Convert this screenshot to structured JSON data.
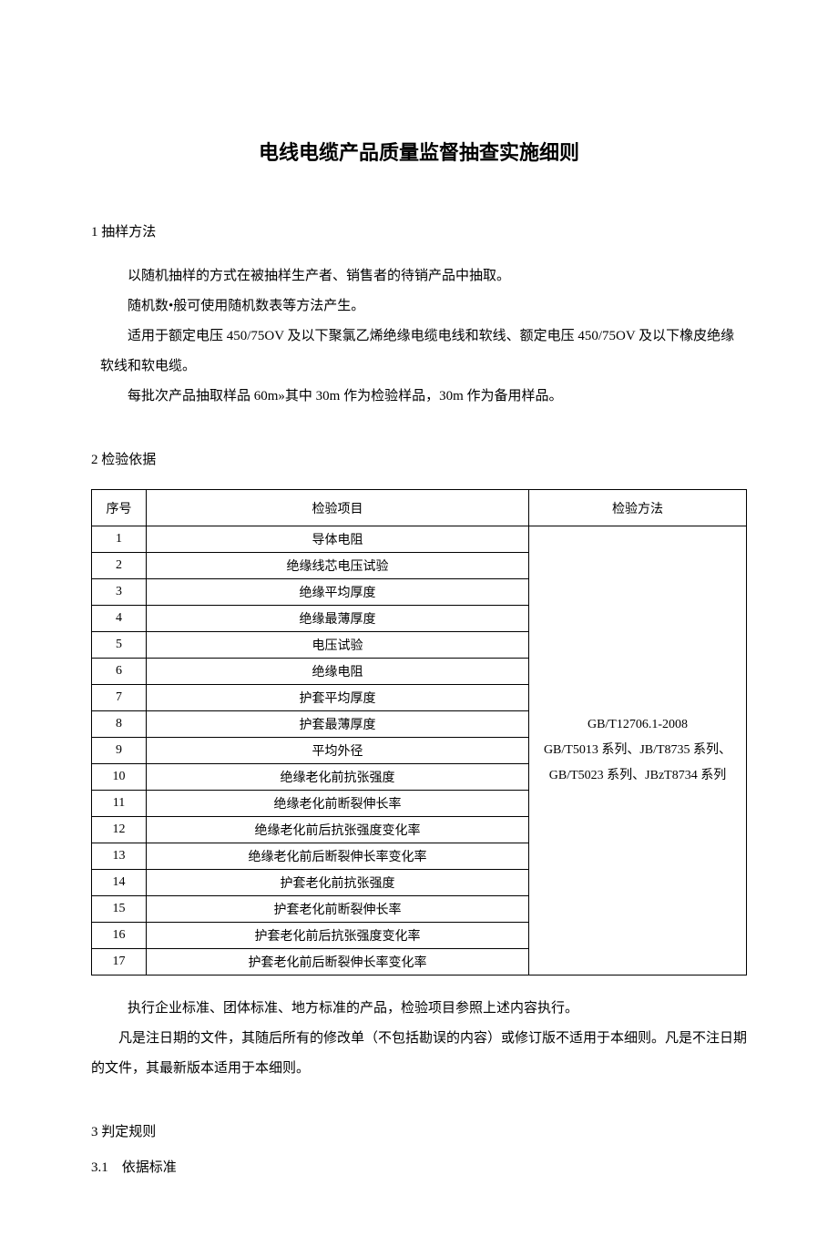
{
  "title": "电线电缆产品质量监督抽查实施细则",
  "section1": {
    "heading": "1 抽样方法",
    "para1": "以随机抽样的方式在被抽样生产者、销售者的待销产品中抽取。",
    "para2": "随机数•般可使用随机数表等方法产生。",
    "para3": "适用于额定电压 450/75OV 及以下聚氯乙烯绝缘电缆电线和软线、额定电压 450/75OV 及以下橡皮绝缘软线和软电缆。",
    "para4": "每批次产品抽取样品 60m»其中 30m 作为检验样品，30m 作为备用样品。"
  },
  "section2": {
    "heading": "2 检验依据",
    "table": {
      "headers": {
        "seq": "序号",
        "item": "检验项目",
        "method": "检验方法"
      },
      "rows": [
        {
          "seq": "1",
          "item": "导体电阻"
        },
        {
          "seq": "2",
          "item": "绝缘线芯电压试验"
        },
        {
          "seq": "3",
          "item": "绝缘平均厚度"
        },
        {
          "seq": "4",
          "item": "绝缘最薄厚度"
        },
        {
          "seq": "5",
          "item": "电压试验"
        },
        {
          "seq": "6",
          "item": "绝缘电阻"
        },
        {
          "seq": "7",
          "item": "护套平均厚度"
        },
        {
          "seq": "8",
          "item": "护套最薄厚度"
        },
        {
          "seq": "9",
          "item": "平均外径"
        },
        {
          "seq": "10",
          "item": "绝缘老化前抗张强度"
        },
        {
          "seq": "11",
          "item": "绝缘老化前断裂伸长率"
        },
        {
          "seq": "12",
          "item": "绝缘老化前后抗张强度变化率"
        },
        {
          "seq": "13",
          "item": "绝缘老化前后断裂伸长率变化率"
        },
        {
          "seq": "14",
          "item": "护套老化前抗张强度"
        },
        {
          "seq": "15",
          "item": "护套老化前断裂伸长率"
        },
        {
          "seq": "16",
          "item": "护套老化前后抗张强度变化率"
        },
        {
          "seq": "17",
          "item": "护套老化前后断裂伸长率变化率"
        }
      ],
      "method_line1": "GB/T12706.1-2008",
      "method_line2": "GB/T5013 系列、JB/T8735 系列、GB/T5023 系列、JBzT8734 系列"
    },
    "note1": "执行企业标准、团体标准、地方标准的产品，检验项目参照上述内容执行。",
    "note2": "凡是注日期的文件，其随后所有的修改单（不包括勘误的内容）或修订版不适用于本细则。凡是不注日期的文件，其最新版本适用于本细则。"
  },
  "section3": {
    "heading": "3 判定规则",
    "sub1": "3.1　依据标准"
  }
}
